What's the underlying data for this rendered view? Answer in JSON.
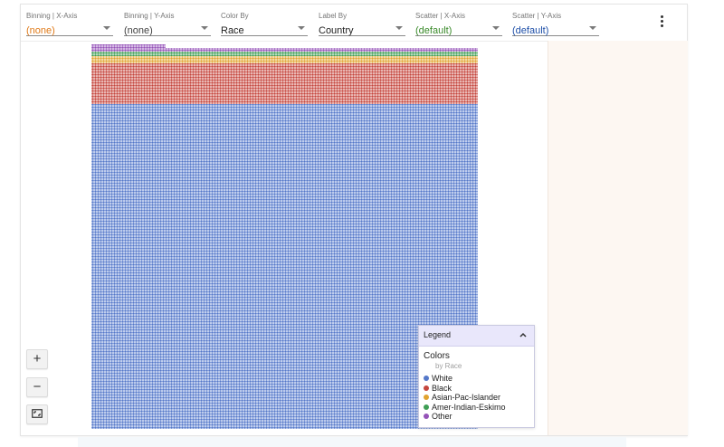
{
  "toolbar": {
    "controls": [
      {
        "label": "Binning | X-Axis",
        "value": "(none)",
        "value_color": "#e07b1a"
      },
      {
        "label": "Binning | Y-Axis",
        "value": "(none)",
        "value_color": "#424242"
      },
      {
        "label": "Color By",
        "value": "Race",
        "value_color": "#212121"
      },
      {
        "label": "Label By",
        "value": "Country",
        "value_color": "#212121"
      },
      {
        "label": "Scatter | X-Axis",
        "value": "(default)",
        "value_color": "#3a8a2a"
      },
      {
        "label": "Scatter | Y-Axis",
        "value": "(default)",
        "value_color": "#1e4fa8"
      }
    ],
    "menu_icon": "more-vert-icon"
  },
  "zoom": {
    "in": "+",
    "out": "−",
    "fit_icon": "fit-screen-icon"
  },
  "legend": {
    "title": "Legend",
    "section": "Colors",
    "by": "by Race",
    "items": [
      {
        "label": "White",
        "color": "#5578c9"
      },
      {
        "label": "Black",
        "color": "#c5463e"
      },
      {
        "label": "Asian-Pac-Islander",
        "color": "#e1a32f"
      },
      {
        "label": "Amer-Indian-Eskimo",
        "color": "#3f9e55"
      },
      {
        "label": "Other",
        "color": "#9553b8"
      }
    ]
  }
}
